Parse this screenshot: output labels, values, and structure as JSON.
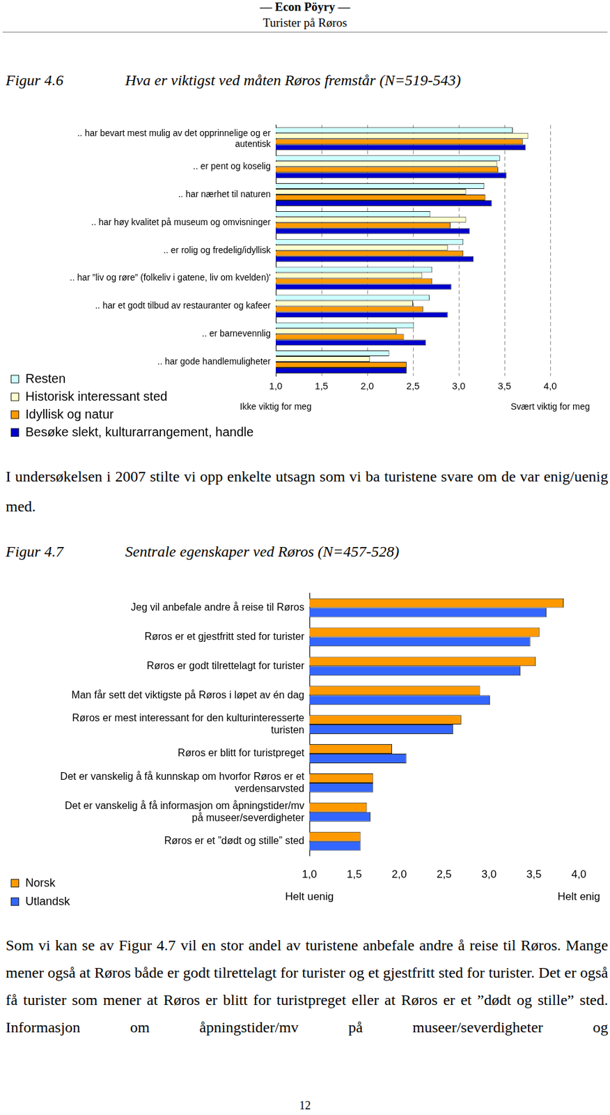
{
  "header": {
    "title": "— Econ Pöyry —",
    "subtitle": "Turister på Røros"
  },
  "chart_data": [
    {
      "type": "bar",
      "figure_label": "Figur 4.6",
      "title": "Hva er viktigst ved måten Røros fremstår (N=519-543)",
      "orientation": "horizontal",
      "categories": [
        ".. har bevart mest mulig av det opprinnelige og er autentisk",
        ".. er pent og koselig",
        ".. har nærhet til naturen",
        ".. har høy kvalitet på museum og omvisninger",
        ".. er rolig og fredelig/idyllisk",
        ".. har ”liv og røre” (folkeliv i gatene, liv om kvelden)'",
        ".. har et godt tilbud av restauranter og kafeer",
        ".. er barnevennlig",
        ".. har gode handlemuligheter"
      ],
      "series": [
        {
          "name": "Resten",
          "color": "#ccffff",
          "values": [
            3.59,
            3.45,
            3.28,
            2.69,
            3.05,
            2.71,
            2.68,
            2.51,
            2.24
          ]
        },
        {
          "name": "Historisk interessant sted",
          "color": "#ffffcc",
          "values": [
            3.76,
            3.42,
            3.08,
            3.08,
            2.88,
            2.6,
            2.5,
            2.32,
            2.03
          ]
        },
        {
          "name": "Idyllisk og natur",
          "color": "#ff9900",
          "values": [
            3.7,
            3.43,
            3.29,
            2.91,
            3.05,
            2.71,
            2.61,
            2.4,
            2.43
          ]
        },
        {
          "name": "Besøke slekt, kulturarrangement, handle",
          "color": "#0000cc",
          "values": [
            3.73,
            3.52,
            3.36,
            3.12,
            3.16,
            2.92,
            2.88,
            2.64,
            2.43
          ]
        }
      ],
      "xlim": [
        1,
        4
      ],
      "xticks": [
        {
          "value": 1,
          "label": "1,0"
        },
        {
          "value": 1.5,
          "label": "1,5"
        },
        {
          "value": 2,
          "label": "2,0"
        },
        {
          "value": 2.5,
          "label": "2,5"
        },
        {
          "value": 3,
          "label": "3,0"
        },
        {
          "value": 3.5,
          "label": "3,5"
        },
        {
          "value": 4,
          "label": "4,0"
        }
      ],
      "xlabel_left": "Ikke viktig for meg",
      "xlabel_right": "Svært viktig for meg",
      "grid": true,
      "legend": "lower left"
    },
    {
      "type": "bar",
      "figure_label": "Figur 4.7",
      "title": "Sentrale egenskaper ved Røros (N=457-528)",
      "orientation": "horizontal",
      "categories": [
        "Jeg vil anbefale andre å reise til Røros",
        "Røros er et gjestfritt sted for turister",
        "Røros er godt tilrettelagt for turister",
        "Man får sett det viktigste på Røros i løpet av én dag",
        "Røros er mest interessant for den kulturinteresserte turisten",
        "Røros er blitt for turistpreget",
        "Det er vanskelig å få kunnskap om hvorfor Røros er et verdensarvsted",
        "Det er vanskelig å få informasjon om åpningstider/mv på museer/severdigheter",
        "Røros er et ”dødt og stille” sted"
      ],
      "series": [
        {
          "name": "Norsk",
          "color": "#ff9900",
          "values": [
            3.83,
            3.56,
            3.52,
            2.9,
            2.69,
            1.92,
            1.71,
            1.64,
            1.57
          ]
        },
        {
          "name": "Utlandsk",
          "color": "#3366ff",
          "values": [
            3.64,
            3.46,
            3.35,
            3.01,
            2.6,
            2.08,
            1.71,
            1.68,
            1.57
          ]
        }
      ],
      "xlim": [
        1,
        4
      ],
      "xticks": [
        {
          "value": 1,
          "label": "1,0"
        },
        {
          "value": 1.5,
          "label": "1,5"
        },
        {
          "value": 2,
          "label": "2,0"
        },
        {
          "value": 2.5,
          "label": "2,5"
        },
        {
          "value": 3,
          "label": "3,0"
        },
        {
          "value": 3.5,
          "label": "3,5"
        },
        {
          "value": 4,
          "label": "4,0"
        }
      ],
      "xlabel_left": "Helt uenig",
      "xlabel_right": "Helt enig",
      "grid": false,
      "legend": "lower left"
    }
  ],
  "paragraphs": [
    "I undersøkelsen i 2007 stilte vi opp enkelte utsagn som vi ba turistene svare om de var enig/uenig med.",
    "Som vi kan se av Figur 4.7 vil en stor andel av turistene anbefale andre å reise til Røros. Mange mener også at Røros både er godt tilrettelagt for turister og et gjestfritt sted for turister. Det er også få turister som mener at Røros er blitt for turistpreget eller at Røros er et ”dødt og stille” sted. Informasjon om åpningstider/mv på museer/severdigheter og"
  ],
  "page_number": 12
}
